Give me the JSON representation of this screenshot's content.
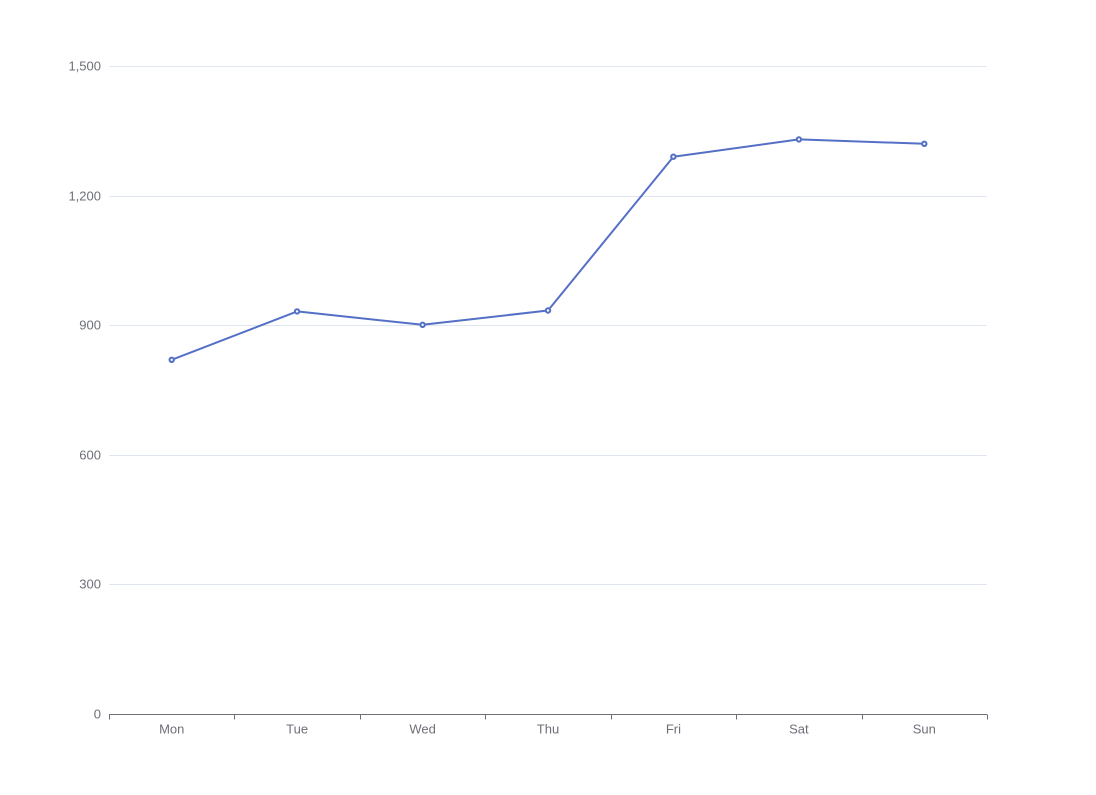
{
  "colors": {
    "series": "#5470c6",
    "grid": "#e0e6f1",
    "axis": "#6e7079",
    "label": "#6e7079",
    "marker_fill": "#ffffff"
  },
  "chart_data": {
    "type": "line",
    "title": "",
    "xlabel": "",
    "ylabel": "",
    "categories": [
      "Mon",
      "Tue",
      "Wed",
      "Thu",
      "Fri",
      "Sat",
      "Sun"
    ],
    "series": [
      {
        "values": [
          820,
          932,
          901,
          934,
          1290,
          1330,
          1320
        ]
      }
    ],
    "ylim": [
      0,
      1500
    ],
    "yticks": [
      0,
      300,
      600,
      900,
      1200,
      1500
    ],
    "ytick_labels": [
      "0",
      "300",
      "600",
      "900",
      "1,200",
      "1,500"
    ],
    "grid": true,
    "legend": false,
    "markers": "hollow-circle"
  }
}
